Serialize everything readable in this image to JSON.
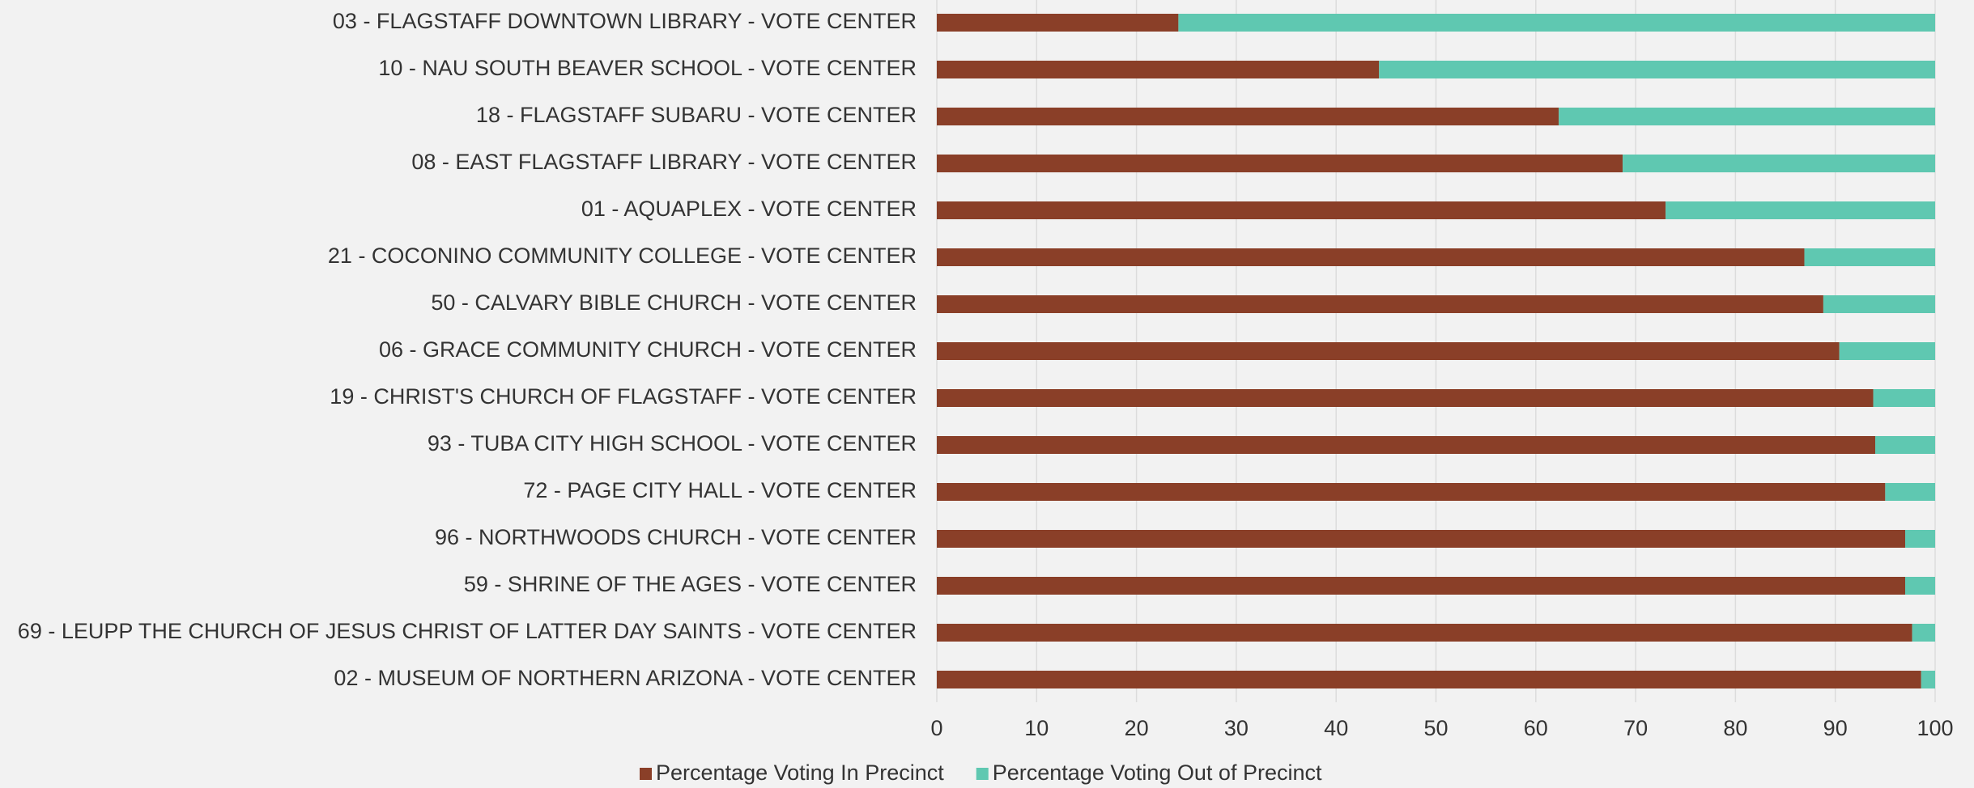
{
  "chart_data": {
    "type": "stacked_barh",
    "categories": [
      "03 - FLAGSTAFF DOWNTOWN LIBRARY - VOTE CENTER",
      "10 - NAU SOUTH BEAVER SCHOOL - VOTE CENTER",
      "18 - FLAGSTAFF SUBARU - VOTE CENTER",
      "08 - EAST FLAGSTAFF LIBRARY - VOTE CENTER",
      "01 - AQUAPLEX - VOTE CENTER",
      "21 - COCONINO COMMUNITY COLLEGE - VOTE CENTER",
      "50 - CALVARY BIBLE CHURCH - VOTE CENTER",
      "06 - GRACE COMMUNITY CHURCH - VOTE CENTER",
      "19 - CHRIST'S CHURCH OF FLAGSTAFF - VOTE CENTER",
      "93 - TUBA CITY HIGH SCHOOL - VOTE CENTER",
      "72 - PAGE CITY HALL - VOTE CENTER",
      "96 - NORTHWOODS CHURCH - VOTE CENTER",
      "59 - SHRINE OF THE AGES - VOTE CENTER",
      "69 - LEUPP THE CHURCH OF JESUS CHRIST OF LATTER DAY SAINTS - VOTE CENTER",
      "02 - MUSEUM OF NORTHERN ARIZONA - VOTE CENTER"
    ],
    "series": [
      {
        "name": "Percentage Voting In Precinct",
        "color": "#8a3f28",
        "values": [
          24.2,
          44.3,
          62.3,
          68.7,
          73.0,
          86.9,
          88.8,
          90.4,
          93.8,
          94.0,
          95.0,
          97.0,
          97.0,
          97.7,
          98.6
        ]
      },
      {
        "name": "Percentage Voting Out of Precinct",
        "color": "#5fc8b1",
        "values": [
          75.8,
          55.7,
          37.7,
          31.3,
          27.0,
          13.1,
          11.2,
          9.6,
          6.2,
          6.0,
          5.0,
          3.0,
          3.0,
          2.3,
          1.4
        ]
      }
    ],
    "xlim": [
      0,
      100
    ],
    "xticks": [
      0,
      10,
      20,
      30,
      40,
      50,
      60,
      70,
      80,
      90,
      100
    ],
    "grid": true,
    "legend": "bottom"
  }
}
